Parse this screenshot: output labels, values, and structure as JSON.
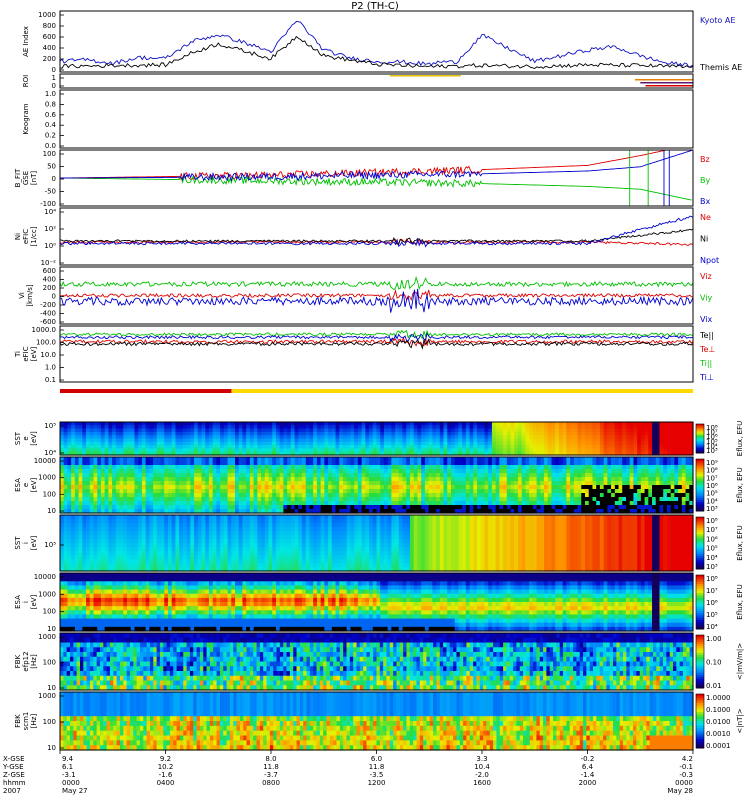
{
  "title": "P2 (TH-C)",
  "colors": {
    "kyoto": "#1010c0",
    "themis": "#000000",
    "red": "#e00000",
    "green": "#00c000",
    "blue": "#0000d0",
    "roi_yellow": "#e8c000",
    "roi_red": "#d00000",
    "roi_purple": "#5a1870",
    "roi_orange": "#e88000"
  },
  "panels": [
    {
      "key": "ae",
      "ylabel": [
        "AE Index"
      ],
      "ticks": [
        "1000",
        "800",
        "600",
        "400",
        "200",
        "0"
      ],
      "legend": [
        {
          "text": "Kyoto AE",
          "color": "#1010c0"
        },
        {
          "text": "Themis AE",
          "color": "#000000"
        }
      ]
    },
    {
      "key": "roi",
      "ylabel": [
        "ROI"
      ],
      "ticks": [
        "1",
        "0"
      ],
      "legend": []
    },
    {
      "key": "keogram",
      "ylabel": [
        "Keogram"
      ],
      "ticks": [
        "1.0",
        "0.8",
        "0.6",
        "0.4",
        "0.2",
        "0.0"
      ],
      "legend": []
    },
    {
      "key": "bfit",
      "ylabel": [
        "B_FIT",
        "GSE",
        "[nT]"
      ],
      "ticks": [
        "100",
        "50",
        "0",
        "-50",
        "-100"
      ],
      "legend": [
        {
          "text": "Bz",
          "color": "#e00000"
        },
        {
          "text": "By",
          "color": "#00c000"
        },
        {
          "text": "Bx",
          "color": "#0000d0"
        }
      ]
    },
    {
      "key": "ni",
      "ylabel": [
        "Ni",
        "eFIC",
        "[1/cc]"
      ],
      "ticks": [
        "10⁴",
        "10²",
        "10⁰",
        "10⁻²"
      ],
      "legend": [
        {
          "text": "Ne",
          "color": "#e00000"
        },
        {
          "text": "Ni",
          "color": "#000000"
        },
        {
          "text": "Npot",
          "color": "#0000d0"
        }
      ]
    },
    {
      "key": "vi",
      "ylabel": [
        "Vi",
        "[km/s]"
      ],
      "ticks": [
        "600",
        "400",
        "200",
        "0",
        "-200",
        "-400",
        "-600"
      ],
      "legend": [
        {
          "text": "Viz",
          "color": "#e00000"
        },
        {
          "text": "Viy",
          "color": "#00c000"
        },
        {
          "text": "Vix",
          "color": "#0000d0"
        }
      ]
    },
    {
      "key": "ti",
      "ylabel": [
        "Ti",
        "eFIC",
        "[eV]"
      ],
      "ticks": [
        "1000.0",
        "100.0",
        "10.0",
        "1.0",
        "0.1"
      ],
      "legend": [
        {
          "text": "Te||",
          "color": "#000000"
        },
        {
          "text": "Te⊥",
          "color": "#e00000"
        },
        {
          "text": "Ti||",
          "color": "#00c000"
        },
        {
          "text": "Ti⊥",
          "color": "#0000d0"
        }
      ]
    },
    {
      "key": "sst_e",
      "ylabel": [
        "SST",
        "e",
        "[eV]"
      ],
      "ticks": [
        "10⁵",
        "10⁴"
      ],
      "cbar": {
        "label": "Eflux, EFU",
        "ticks": [
          "10⁸",
          "10⁷",
          "10⁶",
          "10⁵",
          "10⁴",
          "10³"
        ]
      }
    },
    {
      "key": "esa_e",
      "ylabel": [
        "ESA",
        "e",
        "[eV]"
      ],
      "ticks": [
        "10000",
        "1000",
        "100",
        "10"
      ],
      "cbar": {
        "label": "Eflux, EFU",
        "ticks": [
          "10⁹",
          "10⁸",
          "10⁷",
          "10⁶",
          "10⁵",
          "10⁴",
          "10³"
        ]
      }
    },
    {
      "key": "sst_i",
      "ylabel": [
        "SST",
        "i",
        "[eV]"
      ],
      "ticks": [
        "10⁵"
      ],
      "cbar": {
        "label": "Eflux, EFU",
        "ticks": [
          "10⁸",
          "10⁷",
          "10⁶",
          "10⁵",
          "10⁴",
          "10³"
        ]
      }
    },
    {
      "key": "esa_i",
      "ylabel": [
        "ESA",
        "i",
        "[eV]"
      ],
      "ticks": [
        "10000",
        "1000",
        "100",
        "10"
      ],
      "cbar": {
        "label": "Eflux, EFU",
        "ticks": [
          "10⁸",
          "10⁷",
          "10⁶",
          "10⁵",
          "10⁴"
        ]
      }
    },
    {
      "key": "fbk1",
      "ylabel": [
        "FBK",
        "efp12",
        "[Hz]"
      ],
      "ticks": [
        "1000",
        "100",
        "10"
      ],
      "cbar": {
        "label": "<|mV/m|>",
        "ticks": [
          "1.00",
          "0.10",
          "0.01"
        ]
      }
    },
    {
      "key": "fbk2",
      "ylabel": [
        "FBK",
        "scm1",
        "[Hz]"
      ],
      "ticks": [
        "1000",
        "100",
        "10"
      ],
      "cbar": {
        "label": "<|nT|>",
        "ticks": [
          "1.0000",
          "0.1000",
          "0.0100",
          "0.0010",
          "0.0001"
        ]
      }
    }
  ],
  "xaxis": {
    "row_labels": [
      "X-GSE",
      "Y-GSE",
      "Z-GSE",
      "hhmm",
      "2007"
    ],
    "columns": [
      [
        "9.4",
        "6.1",
        "-3.1",
        "0000",
        "May 27"
      ],
      [
        "9.2",
        "10.2",
        "-1.6",
        "0400",
        ""
      ],
      [
        "8.0",
        "11.8",
        "-3.7",
        "0800",
        ""
      ],
      [
        "6.0",
        "11.8",
        "-3.5",
        "1200",
        ""
      ],
      [
        "3.3",
        "10.4",
        "-2.0",
        "1600",
        ""
      ],
      [
        "-0.2",
        "6.4",
        "-1.4",
        "2000",
        ""
      ],
      [
        "4.2",
        "-0.1",
        "-0.3",
        "0000",
        "May 28"
      ]
    ]
  },
  "chart_data": {
    "type": "line",
    "title": "P2 (TH-C)",
    "x_units": "hours since 2007-05-27 00:00",
    "x_range": [
      0,
      24
    ],
    "series": [
      {
        "name": "Kyoto AE",
        "panel": "AE Index",
        "x": [
          0,
          1,
          2,
          3,
          4,
          5,
          6,
          7,
          8,
          9,
          10,
          11,
          12,
          13,
          14,
          14.5,
          15,
          16,
          17,
          18,
          19,
          20,
          21,
          22,
          23,
          24
        ],
        "values": [
          150,
          180,
          120,
          220,
          200,
          500,
          620,
          480,
          320,
          880,
          350,
          210,
          150,
          140,
          100,
          150,
          130,
          610,
          380,
          150,
          250,
          350,
          410,
          250,
          120,
          80
        ]
      },
      {
        "name": "Themis AE",
        "panel": "AE Index",
        "x": [
          0,
          2,
          4,
          5,
          6,
          8,
          9,
          10,
          12,
          14,
          16,
          18,
          20,
          22,
          24
        ],
        "values": [
          60,
          80,
          90,
          300,
          460,
          200,
          600,
          250,
          100,
          60,
          80,
          60,
          90,
          80,
          50
        ]
      },
      {
        "name": "Bz",
        "panel": "B_FIT GSE",
        "x": [
          0,
          4,
          8,
          12,
          16,
          20,
          22,
          23,
          24
        ],
        "values": [
          0,
          5,
          10,
          20,
          30,
          45,
          80,
          100,
          100
        ]
      },
      {
        "name": "By",
        "panel": "B_FIT GSE",
        "x": [
          0,
          4,
          8,
          12,
          16,
          20,
          22,
          23,
          24
        ],
        "values": [
          0,
          -5,
          -10,
          -15,
          -20,
          -30,
          -40,
          -60,
          -80
        ]
      },
      {
        "name": "Bx",
        "panel": "B_FIT GSE",
        "x": [
          0,
          4,
          8,
          12,
          16,
          20,
          22,
          23,
          24
        ],
        "values": [
          0,
          2,
          5,
          10,
          15,
          25,
          40,
          70,
          100
        ]
      }
    ]
  }
}
